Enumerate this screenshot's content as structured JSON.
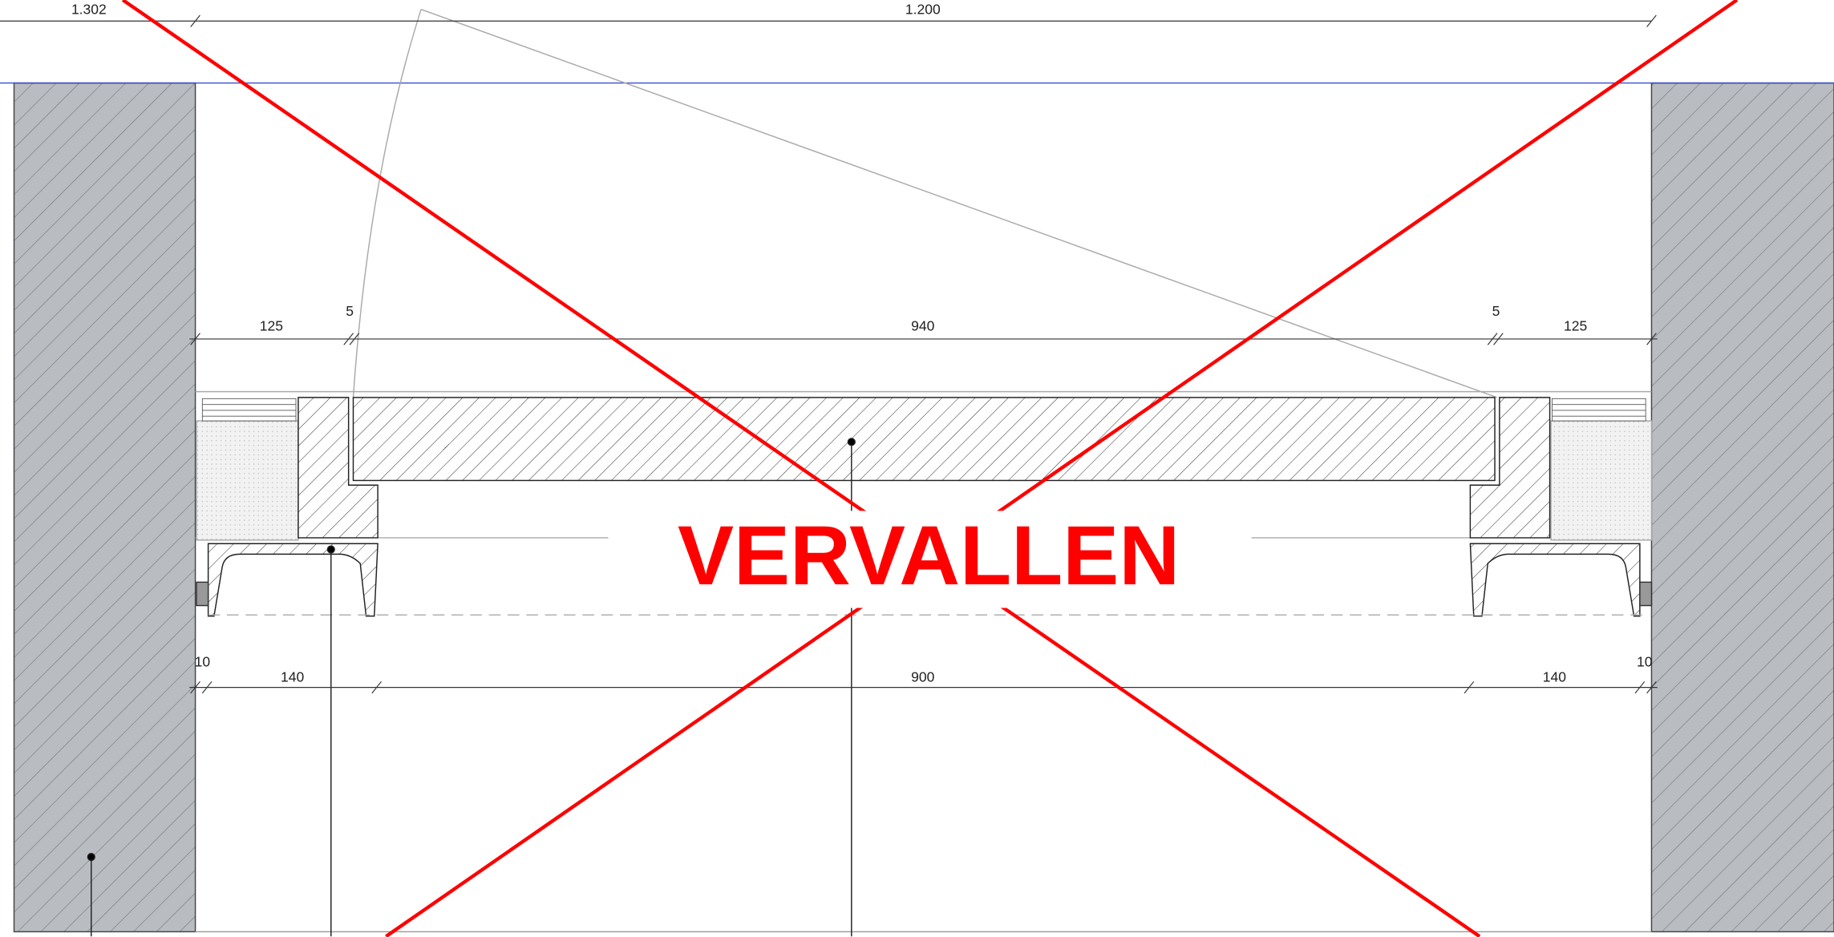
{
  "dimensions": {
    "top": [
      "1.302",
      "1.200"
    ],
    "middle": [
      "125",
      "5",
      "940",
      "5",
      "125"
    ],
    "bottom": [
      "10",
      "140",
      "900",
      "140",
      "10"
    ]
  },
  "stamp": "VERVALLEN"
}
